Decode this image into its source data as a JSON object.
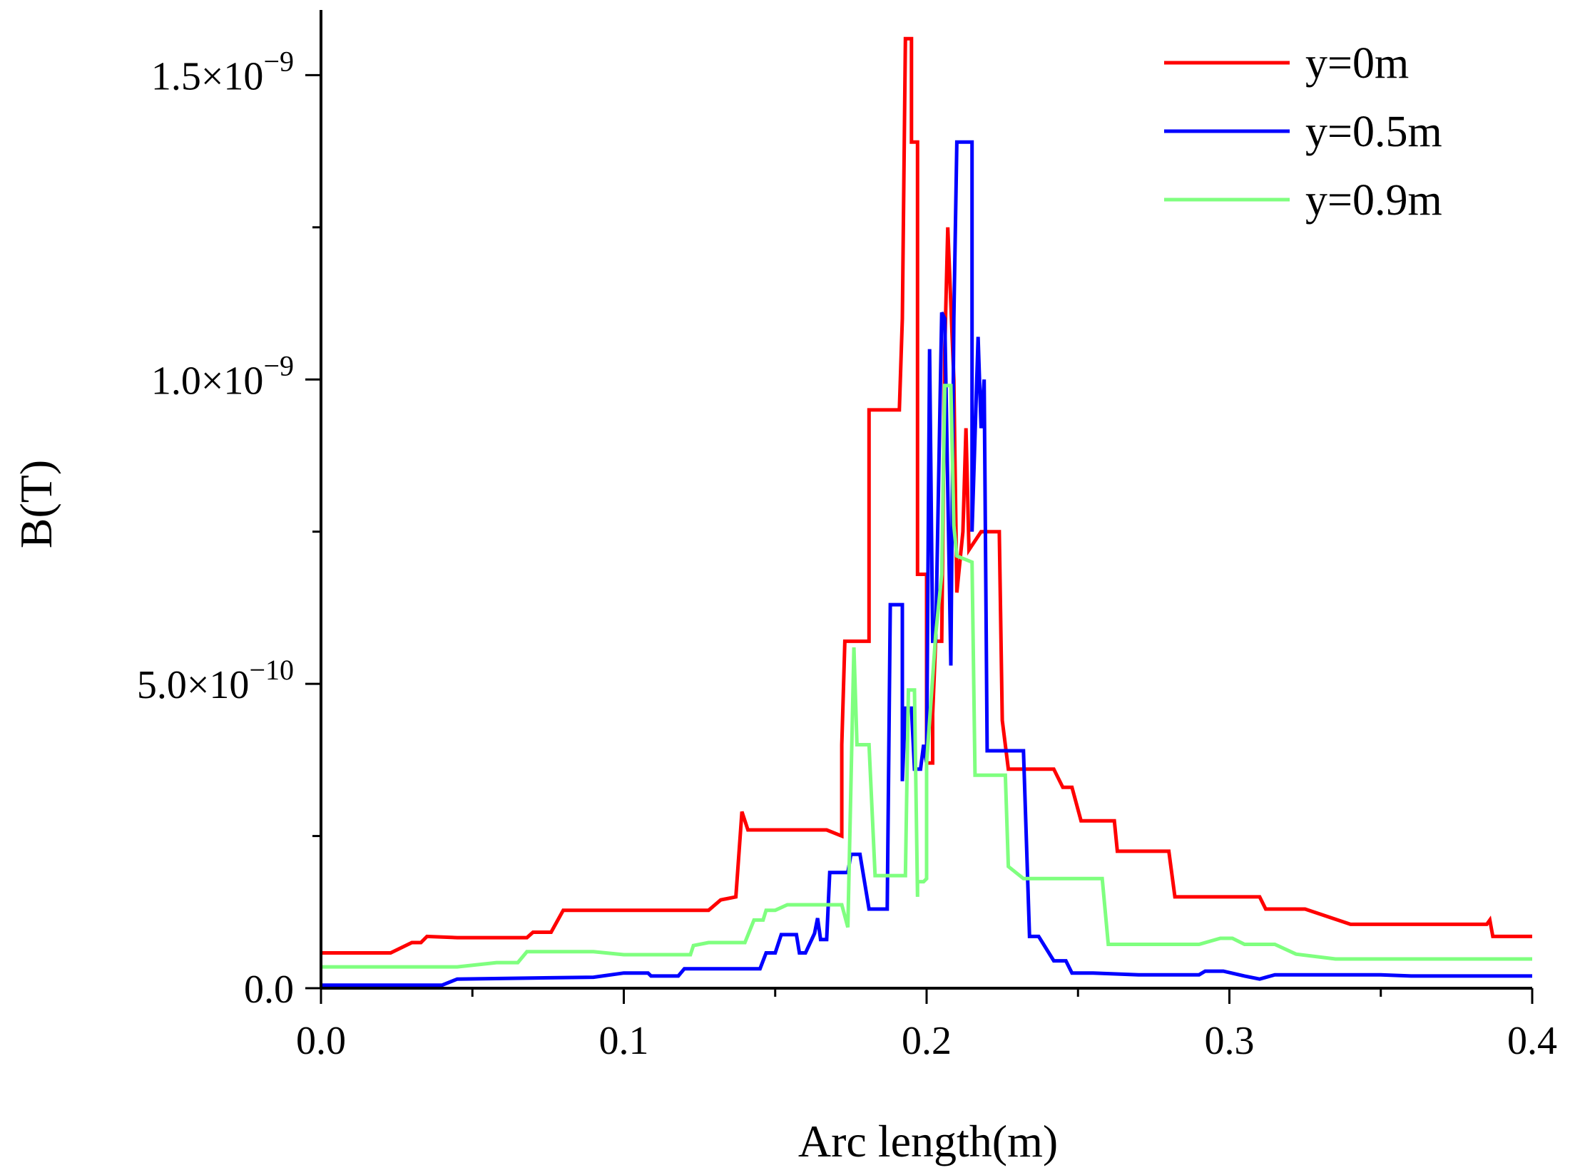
{
  "chart_data": {
    "type": "line",
    "title": "",
    "xlabel": "Arc length(m)",
    "ylabel": "B(T)",
    "xlim": [
      0.0,
      0.4
    ],
    "ylim": [
      0.0,
      1.6e-09
    ],
    "x_ticks": [
      {
        "value": 0.0,
        "label": "0.0"
      },
      {
        "value": 0.1,
        "label": "0.1"
      },
      {
        "value": 0.2,
        "label": "0.2"
      },
      {
        "value": 0.3,
        "label": "0.3"
      },
      {
        "value": 0.4,
        "label": "0.4"
      }
    ],
    "y_ticks": [
      {
        "value": 0.0,
        "mantissa": "0.0",
        "exponent": ""
      },
      {
        "value": 5e-10,
        "mantissa": "5.0×10",
        "exponent": "−10"
      },
      {
        "value": 1e-09,
        "mantissa": "1.0×10",
        "exponent": "−9"
      },
      {
        "value": 1.5e-09,
        "mantissa": "1.5×10",
        "exponent": "−9"
      }
    ],
    "legend_position": "top-right",
    "grid": false,
    "series": [
      {
        "name": "y=0m",
        "color": "#ff0000",
        "points": [
          [
            0.0,
            5.8e-11
          ],
          [
            0.023,
            5.8e-11
          ],
          [
            0.03,
            7.5e-11
          ],
          [
            0.033,
            7.5e-11
          ],
          [
            0.035,
            8.5e-11
          ],
          [
            0.045,
            8.3e-11
          ],
          [
            0.068,
            8.3e-11
          ],
          [
            0.07,
            9.2e-11
          ],
          [
            0.076,
            9.2e-11
          ],
          [
            0.08,
            1.28e-10
          ],
          [
            0.128,
            1.28e-10
          ],
          [
            0.132,
            1.45e-10
          ],
          [
            0.137,
            1.5e-10
          ],
          [
            0.139,
            2.9e-10
          ],
          [
            0.141,
            2.6e-10
          ],
          [
            0.167,
            2.6e-10
          ],
          [
            0.172,
            2.5e-10
          ],
          [
            0.172,
            4e-10
          ],
          [
            0.173,
            5.7e-10
          ],
          [
            0.181,
            5.7e-10
          ],
          [
            0.181,
            9.5e-10
          ],
          [
            0.191,
            9.5e-10
          ],
          [
            0.192,
            1.1e-09
          ],
          [
            0.193,
            1.56e-09
          ],
          [
            0.195,
            1.56e-09
          ],
          [
            0.195,
            1.39e-09
          ],
          [
            0.197,
            1.39e-09
          ],
          [
            0.197,
            6.8e-10
          ],
          [
            0.2,
            6.8e-10
          ],
          [
            0.2,
            3.7e-10
          ],
          [
            0.202,
            3.7e-10
          ],
          [
            0.202,
            4.5e-10
          ],
          [
            0.203,
            5.7e-10
          ],
          [
            0.205,
            5.7e-10
          ],
          [
            0.206,
            1.05e-09
          ],
          [
            0.207,
            1.25e-09
          ],
          [
            0.209,
            1e-09
          ],
          [
            0.21,
            6.5e-10
          ],
          [
            0.212,
            7.5e-10
          ],
          [
            0.213,
            9.2e-10
          ],
          [
            0.214,
            7.2e-10
          ],
          [
            0.218,
            7.5e-10
          ],
          [
            0.224,
            7.5e-10
          ],
          [
            0.225,
            4.4e-10
          ],
          [
            0.227,
            3.6e-10
          ],
          [
            0.242,
            3.6e-10
          ],
          [
            0.245,
            3.3e-10
          ],
          [
            0.248,
            3.3e-10
          ],
          [
            0.251,
            2.75e-10
          ],
          [
            0.262,
            2.75e-10
          ],
          [
            0.263,
            2.25e-10
          ],
          [
            0.28,
            2.25e-10
          ],
          [
            0.282,
            1.5e-10
          ],
          [
            0.31,
            1.5e-10
          ],
          [
            0.312,
            1.3e-10
          ],
          [
            0.325,
            1.3e-10
          ],
          [
            0.34,
            1.05e-10
          ],
          [
            0.385,
            1.05e-10
          ],
          [
            0.386,
            1.12e-10
          ],
          [
            0.387,
            8.5e-11
          ],
          [
            0.4,
            8.5e-11
          ]
        ]
      },
      {
        "name": "y=0.5m",
        "color": "#0000ff",
        "points": [
          [
            0.0,
            5e-12
          ],
          [
            0.04,
            5e-12
          ],
          [
            0.045,
            1.5e-11
          ],
          [
            0.09,
            1.8e-11
          ],
          [
            0.1,
            2.5e-11
          ],
          [
            0.108,
            2.5e-11
          ],
          [
            0.109,
            2e-11
          ],
          [
            0.118,
            2e-11
          ],
          [
            0.12,
            3.2e-11
          ],
          [
            0.145,
            3.2e-11
          ],
          [
            0.147,
            5.8e-11
          ],
          [
            0.15,
            5.8e-11
          ],
          [
            0.152,
            8.8e-11
          ],
          [
            0.157,
            8.8e-11
          ],
          [
            0.158,
            5.8e-11
          ],
          [
            0.16,
            5.8e-11
          ],
          [
            0.163,
            9e-11
          ],
          [
            0.164,
            1.15e-10
          ],
          [
            0.165,
            8e-11
          ],
          [
            0.167,
            8e-11
          ],
          [
            0.168,
            1.9e-10
          ],
          [
            0.174,
            1.9e-10
          ],
          [
            0.175,
            2.2e-10
          ],
          [
            0.178,
            2.2e-10
          ],
          [
            0.181,
            1.3e-10
          ],
          [
            0.187,
            1.3e-10
          ],
          [
            0.188,
            6.3e-10
          ],
          [
            0.192,
            6.3e-10
          ],
          [
            0.192,
            3.4e-10
          ],
          [
            0.193,
            4.6e-10
          ],
          [
            0.195,
            4.6e-10
          ],
          [
            0.196,
            3.6e-10
          ],
          [
            0.198,
            3.6e-10
          ],
          [
            0.199,
            4e-10
          ],
          [
            0.2,
            3.7e-10
          ],
          [
            0.201,
            1.05e-09
          ],
          [
            0.202,
            5.7e-10
          ],
          [
            0.203,
            5.7e-10
          ],
          [
            0.205,
            1.11e-09
          ],
          [
            0.206,
            1.1e-09
          ],
          [
            0.208,
            5.3e-10
          ],
          [
            0.209,
            1.1e-09
          ],
          [
            0.21,
            1.39e-09
          ],
          [
            0.215,
            1.39e-09
          ],
          [
            0.215,
            7.5e-10
          ],
          [
            0.217,
            1.07e-09
          ],
          [
            0.218,
            9.2e-10
          ],
          [
            0.219,
            1e-09
          ],
          [
            0.22,
            3.9e-10
          ],
          [
            0.232,
            3.9e-10
          ],
          [
            0.234,
            8.5e-11
          ],
          [
            0.237,
            8.5e-11
          ],
          [
            0.242,
            4.5e-11
          ],
          [
            0.246,
            4.5e-11
          ],
          [
            0.248,
            2.5e-11
          ],
          [
            0.255,
            2.5e-11
          ],
          [
            0.27,
            2.2e-11
          ],
          [
            0.29,
            2.2e-11
          ],
          [
            0.292,
            2.8e-11
          ],
          [
            0.298,
            2.8e-11
          ],
          [
            0.305,
            2e-11
          ],
          [
            0.31,
            1.5e-11
          ],
          [
            0.315,
            2.2e-11
          ],
          [
            0.35,
            2.2e-11
          ],
          [
            0.36,
            2e-11
          ],
          [
            0.4,
            2e-11
          ]
        ]
      },
      {
        "name": "y=0.9m",
        "color": "#7fff7f",
        "points": [
          [
            0.0,
            3.5e-11
          ],
          [
            0.045,
            3.5e-11
          ],
          [
            0.058,
            4.2e-11
          ],
          [
            0.065,
            4.2e-11
          ],
          [
            0.068,
            6e-11
          ],
          [
            0.09,
            6e-11
          ],
          [
            0.1,
            5.5e-11
          ],
          [
            0.122,
            5.5e-11
          ],
          [
            0.123,
            7e-11
          ],
          [
            0.128,
            7.5e-11
          ],
          [
            0.14,
            7.5e-11
          ],
          [
            0.143,
            1.12e-10
          ],
          [
            0.146,
            1.12e-10
          ],
          [
            0.147,
            1.28e-10
          ],
          [
            0.15,
            1.28e-10
          ],
          [
            0.154,
            1.37e-10
          ],
          [
            0.172,
            1.37e-10
          ],
          [
            0.174,
            1e-10
          ],
          [
            0.176,
            5.6e-10
          ],
          [
            0.177,
            4e-10
          ],
          [
            0.181,
            4e-10
          ],
          [
            0.183,
            1.85e-10
          ],
          [
            0.193,
            1.85e-10
          ],
          [
            0.194,
            4.9e-10
          ],
          [
            0.196,
            4.9e-10
          ],
          [
            0.197,
            1.5e-10
          ],
          [
            0.197,
            1.75e-10
          ],
          [
            0.199,
            1.75e-10
          ],
          [
            0.2,
            1.8e-10
          ],
          [
            0.2,
            3.7e-10
          ],
          [
            0.203,
            5.8e-10
          ],
          [
            0.205,
            6.8e-10
          ],
          [
            0.206,
            9.9e-10
          ],
          [
            0.208,
            9.9e-10
          ],
          [
            0.209,
            7.6e-10
          ],
          [
            0.21,
            7.1e-10
          ],
          [
            0.215,
            7e-10
          ],
          [
            0.216,
            3.5e-10
          ],
          [
            0.226,
            3.5e-10
          ],
          [
            0.227,
            2e-10
          ],
          [
            0.232,
            1.8e-10
          ],
          [
            0.258,
            1.8e-10
          ],
          [
            0.26,
            7.2e-11
          ],
          [
            0.29,
            7.2e-11
          ],
          [
            0.297,
            8.2e-11
          ],
          [
            0.301,
            8.2e-11
          ],
          [
            0.305,
            7.2e-11
          ],
          [
            0.315,
            7.2e-11
          ],
          [
            0.322,
            5.6e-11
          ],
          [
            0.335,
            4.8e-11
          ],
          [
            0.4,
            4.8e-11
          ]
        ]
      }
    ]
  }
}
